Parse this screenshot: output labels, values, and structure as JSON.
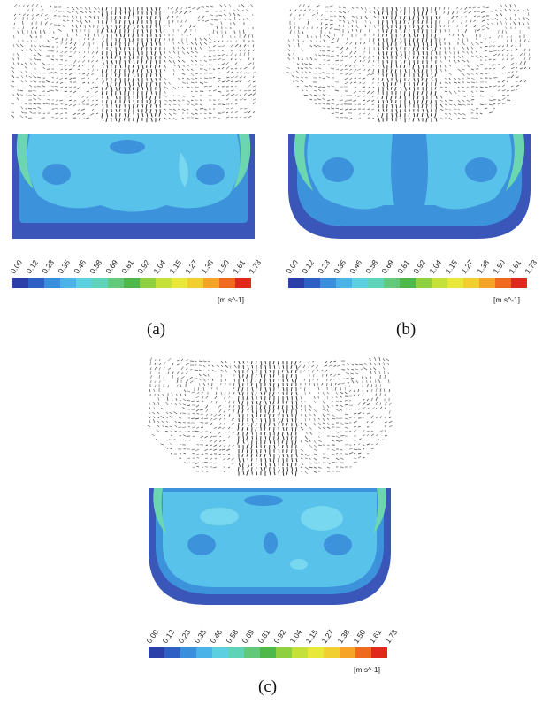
{
  "figure": {
    "panels": [
      {
        "id": "a",
        "caption": "(a)",
        "vessel_bottom": "flat"
      },
      {
        "id": "b",
        "caption": "(b)",
        "vessel_bottom": "rounded"
      },
      {
        "id": "c",
        "caption": "(c)",
        "vessel_bottom": "rounded"
      }
    ],
    "colorbar": {
      "ticks": [
        "0.00",
        "0.12",
        "0.23",
        "0.35",
        "0.46",
        "0.58",
        "0.69",
        "0.81",
        "0.92",
        "1.04",
        "1.15",
        "1.27",
        "1.38",
        "1.50",
        "1.61",
        "1.73"
      ],
      "unit": "[m s^-1]",
      "colors": [
        "#2a3fa8",
        "#2e5fc2",
        "#3a8fdc",
        "#4cb3e8",
        "#5ccfe0",
        "#5fd3b8",
        "#62c97a",
        "#4fb84a",
        "#8fd040",
        "#c6e03a",
        "#e8e83a",
        "#f2cf30",
        "#f5a428",
        "#ef6a1e",
        "#e0281c"
      ]
    },
    "contour_colors": {
      "outer": "#3a56b8",
      "mid": "#3d92dc",
      "light": "#58c2ea",
      "paler": "#78d8ef",
      "green": "#6bd6b0"
    }
  }
}
